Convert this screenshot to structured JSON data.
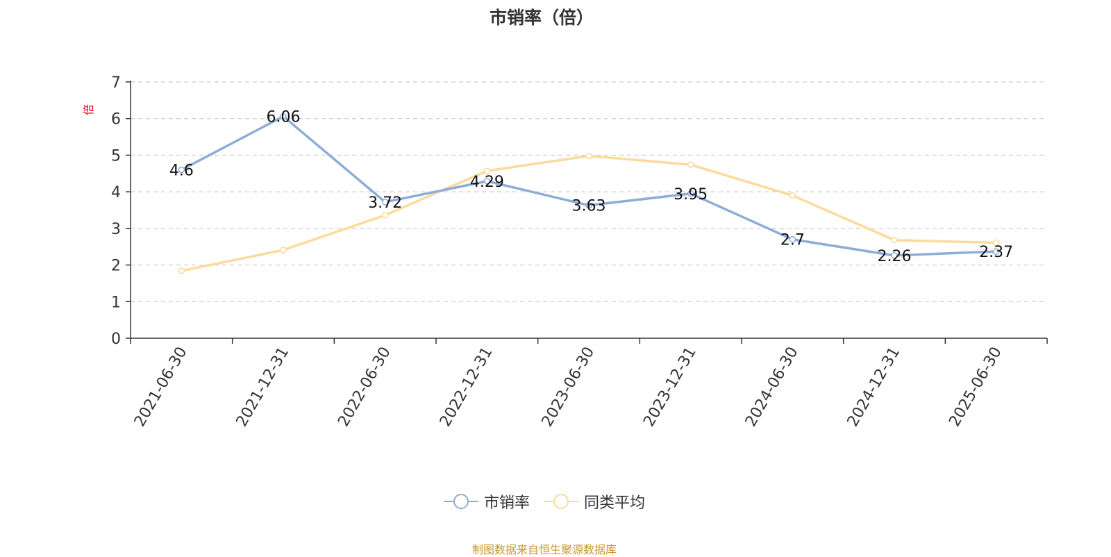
{
  "chart_data": {
    "type": "line",
    "title": "市销率（倍）",
    "ylabel": "倍",
    "xlabel": "",
    "categories": [
      "2021-06-30",
      "2021-12-31",
      "2022-06-30",
      "2022-12-31",
      "2023-06-30",
      "2023-12-31",
      "2024-06-30",
      "2024-12-31",
      "2025-06-30"
    ],
    "ylim": [
      0,
      7
    ],
    "yticks": [
      0,
      1,
      2,
      3,
      4,
      5,
      6,
      7
    ],
    "grid": true,
    "legend_position": "bottom",
    "series": [
      {
        "name": "市销率",
        "color": "#8eacd8",
        "values": [
          4.6,
          6.06,
          3.72,
          4.29,
          3.63,
          3.95,
          2.7,
          2.26,
          2.37
        ],
        "labels": [
          "4.6",
          "6.06",
          "3.72",
          "4.29",
          "3.63",
          "3.95",
          "2.7",
          "2.26",
          "2.37"
        ]
      },
      {
        "name": "同类平均",
        "color": "#fadb9b",
        "values": [
          1.84,
          2.41,
          3.36,
          4.57,
          4.98,
          4.74,
          3.9,
          2.68,
          2.61
        ]
      }
    ]
  },
  "source_note": "制图数据来自恒生聚源数据库",
  "colors": {
    "axis_label": "#e60012",
    "axis": "#333333",
    "grid": "#cccccc"
  }
}
